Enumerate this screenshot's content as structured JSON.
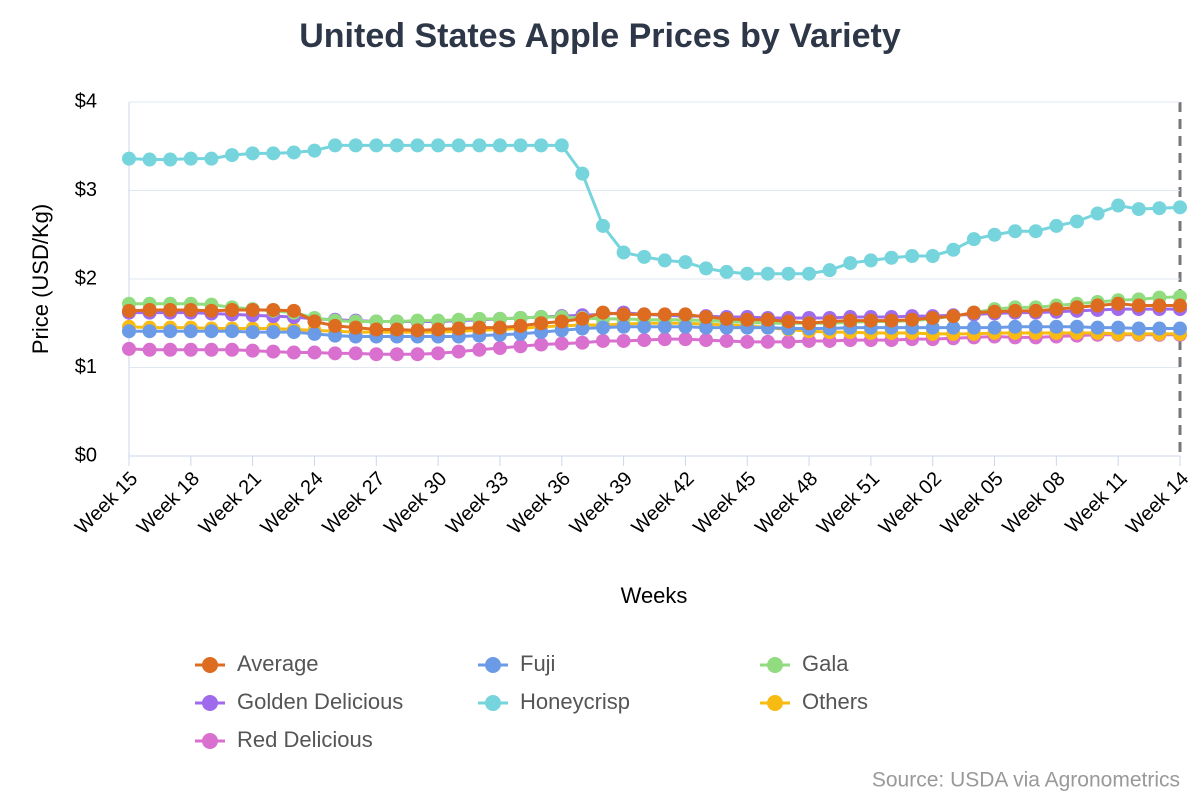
{
  "chart_data": {
    "type": "line",
    "title": "United States Apple Prices by Variety",
    "x_label": "Weeks",
    "y_label": "Price (USD/Kg)",
    "source": "Source: USDA via Agronometrics",
    "categories": [
      "Week 15",
      null,
      null,
      "Week 18",
      null,
      null,
      "Week 21",
      null,
      null,
      "Week 24",
      null,
      null,
      "Week 27",
      null,
      null,
      "Week 30",
      null,
      null,
      "Week 33",
      null,
      null,
      "Week 36",
      null,
      null,
      "Week 39",
      null,
      null,
      "Week 42",
      null,
      null,
      "Week 45",
      null,
      null,
      "Week 48",
      null,
      null,
      "Week 51",
      null,
      null,
      "Week 02",
      null,
      null,
      "Week 05",
      null,
      null,
      "Week 08",
      null,
      null,
      "Week 11",
      null,
      null,
      "Week 14"
    ],
    "ylim": [
      0,
      4
    ],
    "yticks": [
      {
        "value": 0,
        "label": "$0"
      },
      {
        "value": 1,
        "label": "$1"
      },
      {
        "value": 2,
        "label": "$2"
      },
      {
        "value": 3,
        "label": "$3"
      },
      {
        "value": 4,
        "label": "$4"
      }
    ],
    "grid": true,
    "series": [
      {
        "name": "Average",
        "color": "#dd6b20",
        "values": [
          1.64,
          1.65,
          1.65,
          1.65,
          1.64,
          1.65,
          1.65,
          1.65,
          1.64,
          1.52,
          1.47,
          1.45,
          1.43,
          1.43,
          1.42,
          1.43,
          1.44,
          1.45,
          1.45,
          1.47,
          1.5,
          1.52,
          1.55,
          1.62,
          1.6,
          1.6,
          1.6,
          1.6,
          1.57,
          1.55,
          1.54,
          1.54,
          1.52,
          1.5,
          1.52,
          1.53,
          1.53,
          1.53,
          1.54,
          1.56,
          1.58,
          1.62,
          1.63,
          1.64,
          1.64,
          1.66,
          1.68,
          1.7,
          1.72,
          1.7,
          1.7,
          1.7
        ]
      },
      {
        "name": "Fuji",
        "color": "#6b9be6",
        "values": [
          1.41,
          1.41,
          1.41,
          1.41,
          1.41,
          1.41,
          1.4,
          1.4,
          1.4,
          1.38,
          1.36,
          1.35,
          1.35,
          1.35,
          1.35,
          1.35,
          1.35,
          1.36,
          1.37,
          1.38,
          1.4,
          1.42,
          1.44,
          1.45,
          1.46,
          1.46,
          1.46,
          1.46,
          1.45,
          1.45,
          1.45,
          1.45,
          1.44,
          1.44,
          1.44,
          1.45,
          1.45,
          1.45,
          1.45,
          1.45,
          1.45,
          1.45,
          1.45,
          1.46,
          1.46,
          1.46,
          1.46,
          1.45,
          1.45,
          1.44,
          1.44,
          1.44
        ]
      },
      {
        "name": "Gala",
        "color": "#90dc7f",
        "values": [
          1.72,
          1.72,
          1.72,
          1.72,
          1.71,
          1.68,
          1.66,
          1.64,
          1.62,
          1.56,
          1.53,
          1.52,
          1.52,
          1.52,
          1.53,
          1.53,
          1.54,
          1.55,
          1.55,
          1.56,
          1.57,
          1.57,
          1.56,
          1.55,
          1.55,
          1.54,
          1.54,
          1.54,
          1.53,
          1.52,
          1.51,
          1.5,
          1.5,
          1.5,
          1.5,
          1.51,
          1.52,
          1.52,
          1.53,
          1.55,
          1.58,
          1.62,
          1.66,
          1.68,
          1.68,
          1.7,
          1.72,
          1.74,
          1.76,
          1.77,
          1.79,
          1.8
        ]
      },
      {
        "name": "Golden Delicious",
        "color": "#9f6bec",
        "values": [
          1.62,
          1.62,
          1.62,
          1.62,
          1.61,
          1.6,
          1.59,
          1.58,
          1.57,
          1.55,
          1.54,
          1.53,
          1.52,
          1.52,
          1.52,
          1.52,
          1.53,
          1.54,
          1.55,
          1.56,
          1.57,
          1.58,
          1.59,
          1.6,
          1.62,
          1.6,
          1.59,
          1.58,
          1.58,
          1.57,
          1.57,
          1.56,
          1.56,
          1.56,
          1.56,
          1.57,
          1.57,
          1.57,
          1.58,
          1.58,
          1.59,
          1.6,
          1.61,
          1.62,
          1.62,
          1.63,
          1.64,
          1.65,
          1.66,
          1.66,
          1.66,
          1.66
        ]
      },
      {
        "name": "Honeycrisp",
        "color": "#76d4dc",
        "values": [
          3.36,
          3.35,
          3.35,
          3.36,
          3.36,
          3.4,
          3.42,
          3.42,
          3.43,
          3.45,
          3.51,
          3.51,
          3.51,
          3.51,
          3.51,
          3.51,
          3.51,
          3.51,
          3.51,
          3.51,
          3.51,
          3.51,
          3.19,
          2.6,
          2.3,
          2.25,
          2.21,
          2.19,
          2.12,
          2.08,
          2.06,
          2.06,
          2.06,
          2.06,
          2.1,
          2.18,
          2.21,
          2.24,
          2.26,
          2.26,
          2.33,
          2.45,
          2.5,
          2.54,
          2.54,
          2.6,
          2.65,
          2.74,
          2.83,
          2.79,
          2.8,
          2.81
        ]
      },
      {
        "name": "Others",
        "color": "#f8bb12",
        "values": [
          1.46,
          1.45,
          1.45,
          1.45,
          1.44,
          1.44,
          1.44,
          1.44,
          1.43,
          1.42,
          1.41,
          1.4,
          1.4,
          1.4,
          1.4,
          1.4,
          1.41,
          1.42,
          1.43,
          1.44,
          1.46,
          1.47,
          1.48,
          1.48,
          1.49,
          1.5,
          1.5,
          1.5,
          1.49,
          1.48,
          1.47,
          1.45,
          1.43,
          1.41,
          1.4,
          1.4,
          1.39,
          1.39,
          1.39,
          1.38,
          1.38,
          1.38,
          1.39,
          1.39,
          1.39,
          1.39,
          1.39,
          1.39,
          1.38,
          1.38,
          1.38,
          1.38
        ]
      },
      {
        "name": "Red Delicious",
        "color": "#d96fcf",
        "values": [
          1.21,
          1.2,
          1.2,
          1.2,
          1.2,
          1.2,
          1.19,
          1.18,
          1.17,
          1.17,
          1.16,
          1.16,
          1.15,
          1.15,
          1.15,
          1.16,
          1.18,
          1.2,
          1.22,
          1.24,
          1.26,
          1.27,
          1.28,
          1.3,
          1.3,
          1.31,
          1.32,
          1.32,
          1.31,
          1.3,
          1.29,
          1.29,
          1.29,
          1.3,
          1.3,
          1.31,
          1.31,
          1.31,
          1.32,
          1.32,
          1.33,
          1.34,
          1.35,
          1.34,
          1.34,
          1.35,
          1.36,
          1.37,
          1.37,
          1.37,
          1.37,
          1.37
        ]
      }
    ]
  }
}
